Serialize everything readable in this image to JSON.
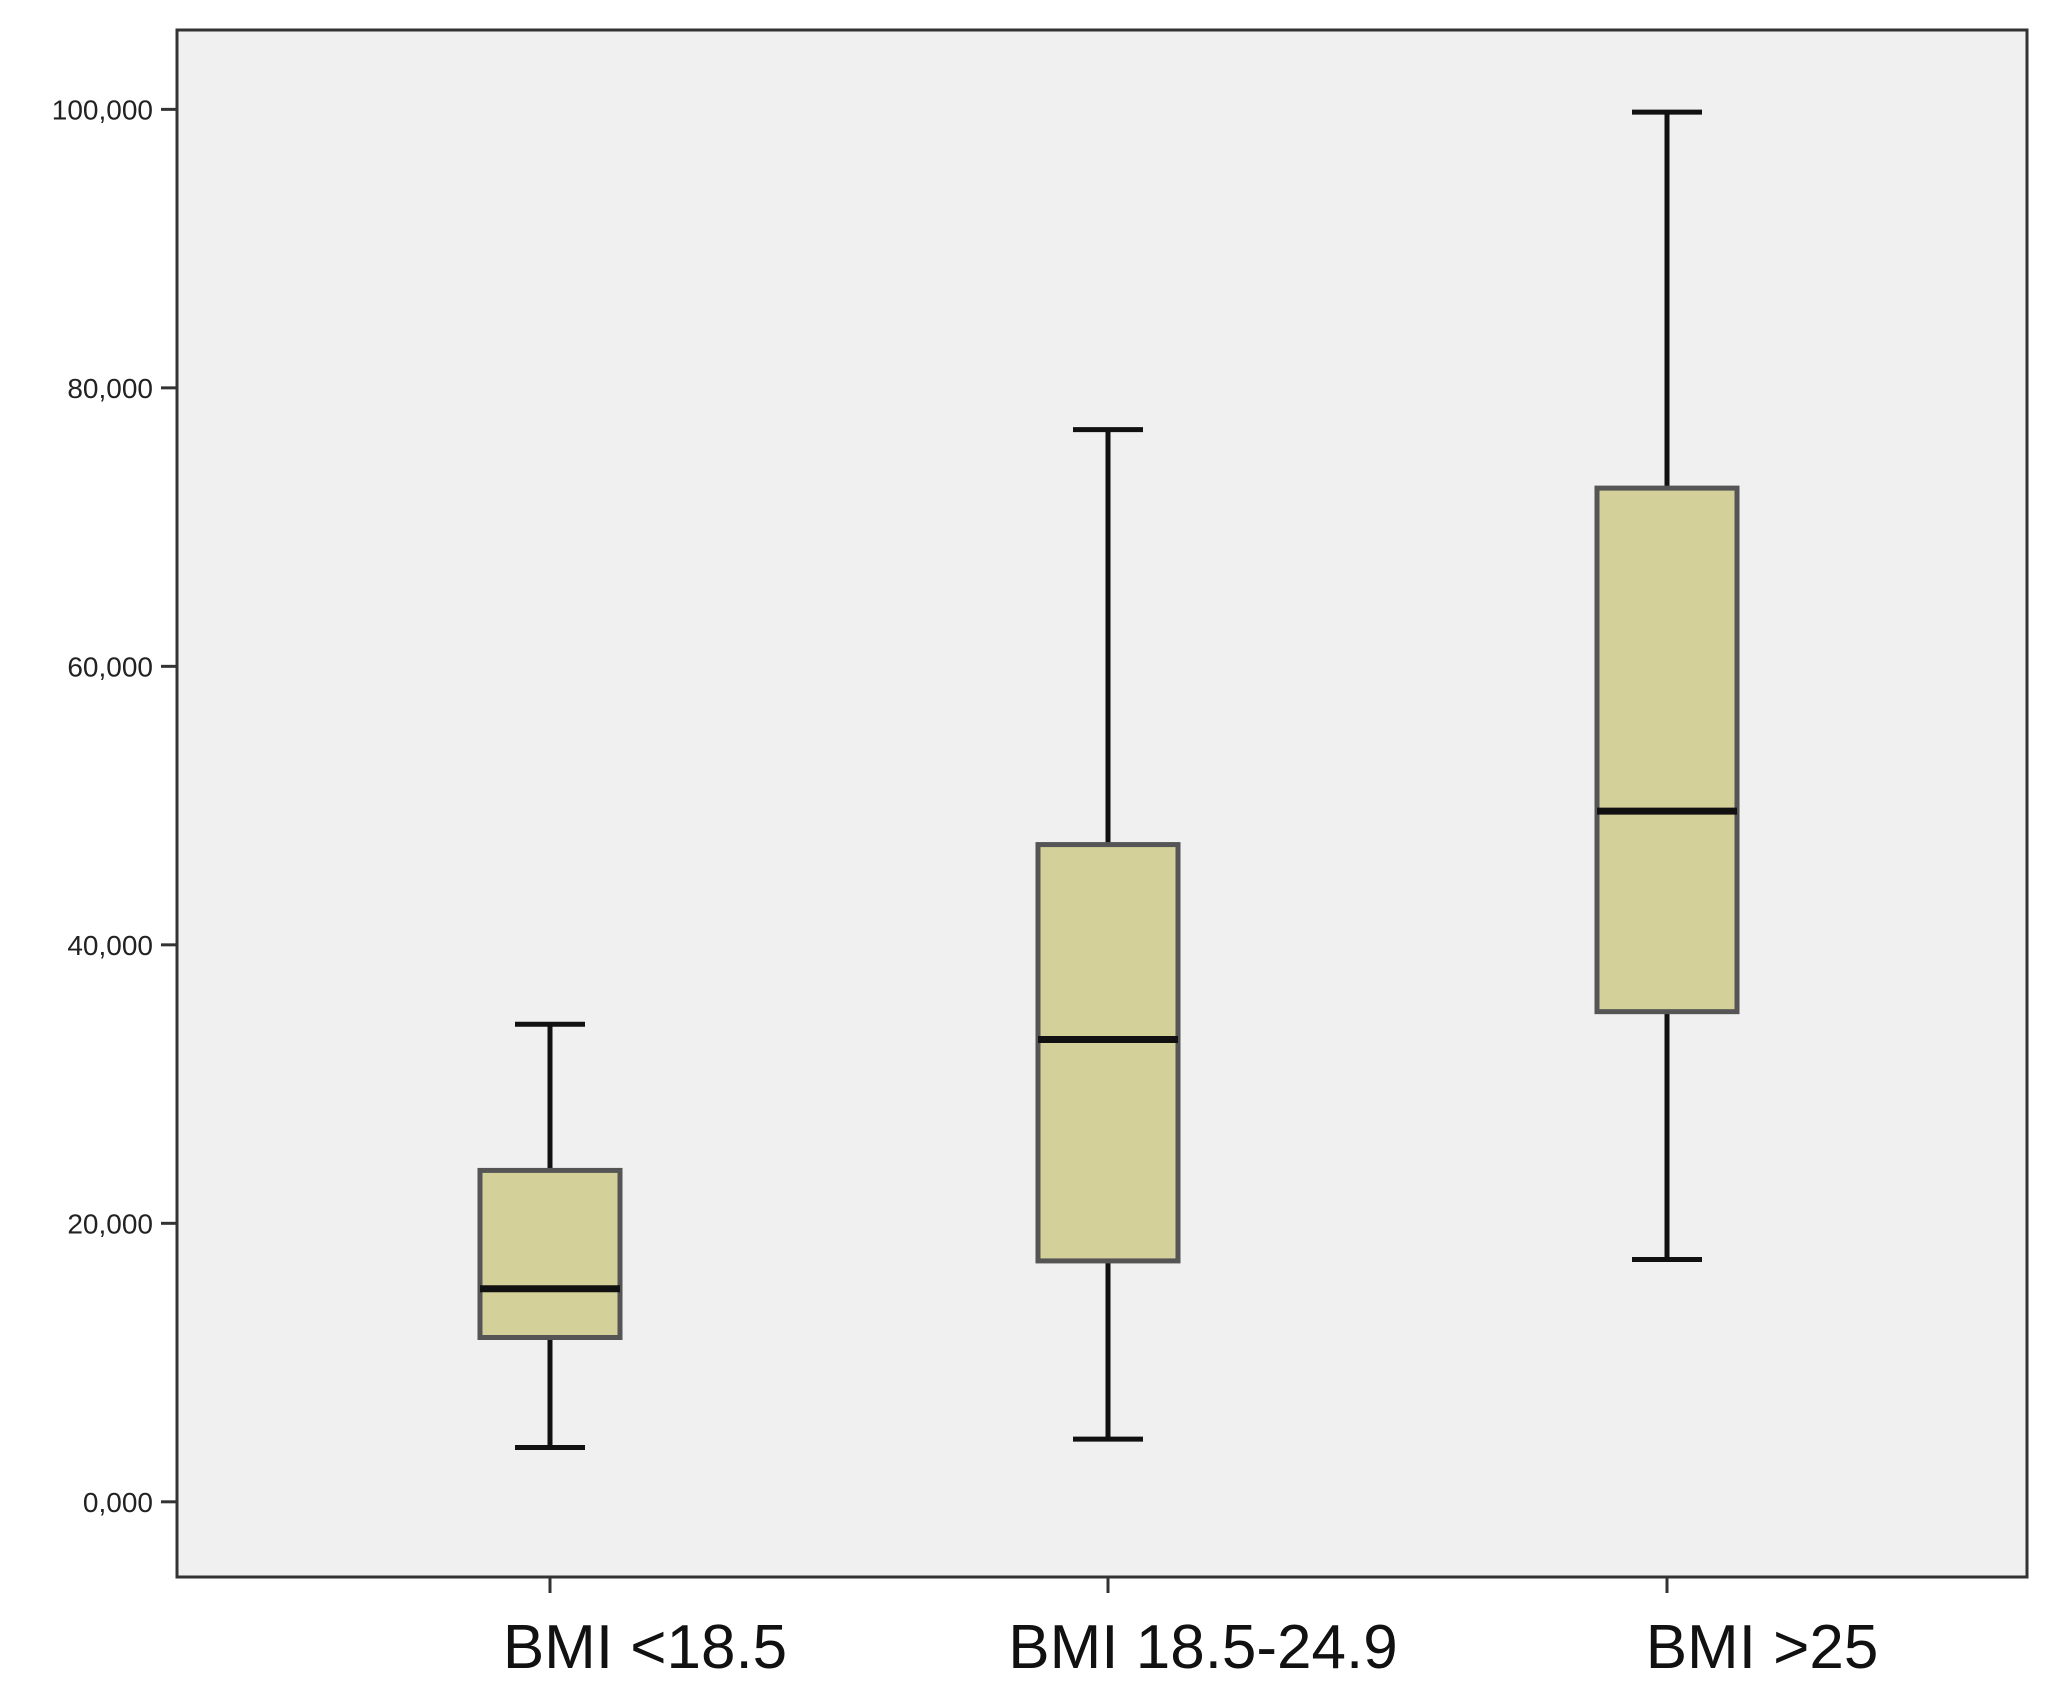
{
  "chart_data": {
    "type": "box",
    "title": "",
    "xlabel": "",
    "ylabel": "",
    "categories": [
      "BMI <18.5",
      "BMI 18.5-24.9",
      "BMI >25"
    ],
    "boxes": [
      {
        "category": "BMI <18.5",
        "min": 3.9,
        "q1": 11.8,
        "median": 15.3,
        "q3": 23.8,
        "max": 34.3
      },
      {
        "category": "BMI 18.5-24.9",
        "min": 4.5,
        "q1": 17.3,
        "median": 33.2,
        "q3": 47.2,
        "max": 77.0
      },
      {
        "category": "BMI >25",
        "min": 17.4,
        "q1": 35.2,
        "median": 49.6,
        "q3": 72.8,
        "max": 99.8
      }
    ],
    "yticks": [
      0,
      20,
      40,
      60,
      80,
      100
    ],
    "ytick_labels": [
      "0,000",
      "20,000",
      "40,000",
      "60,000",
      "80,000",
      "100,000"
    ],
    "ylim": [
      -5.4,
      105.7
    ],
    "grid": false,
    "legend": "none",
    "colors": {
      "plot_background": "#f0f0f0",
      "box_fill": "#d4d09a",
      "box_stroke": "#555555",
      "line": "#111111"
    }
  }
}
